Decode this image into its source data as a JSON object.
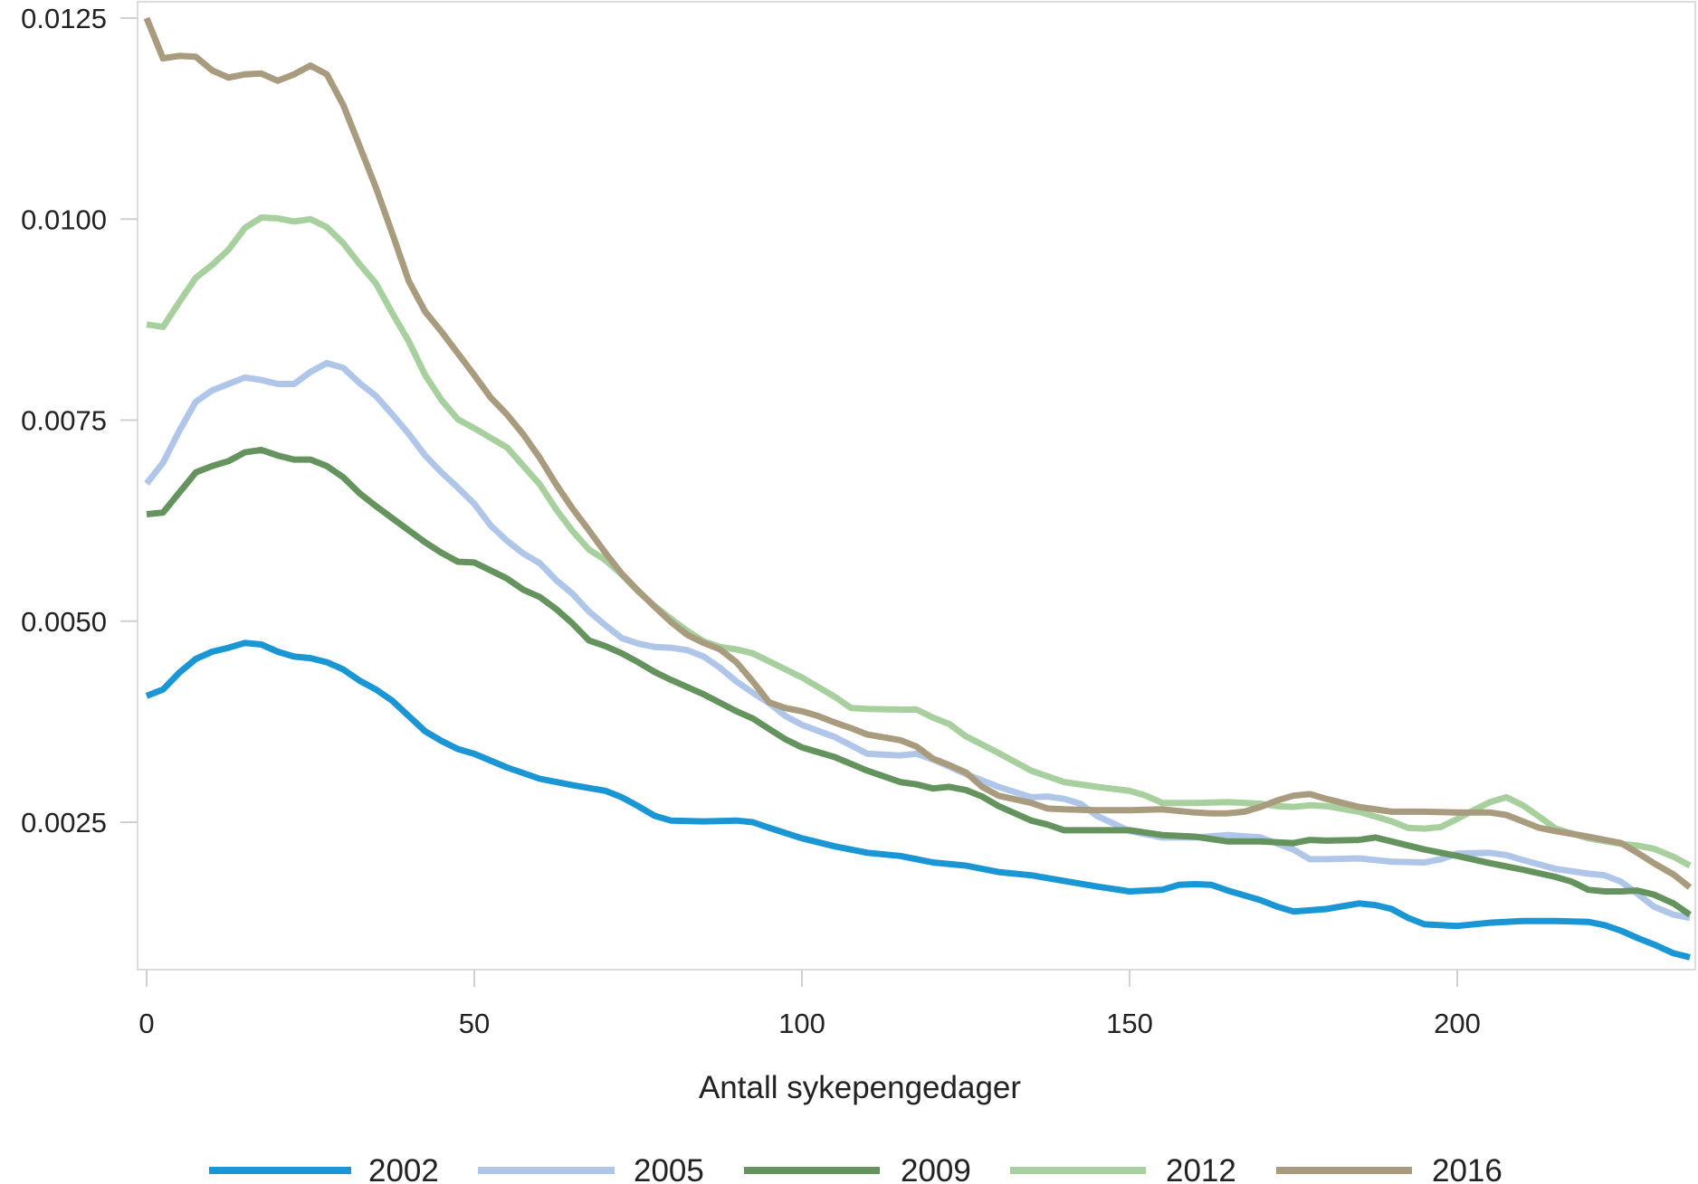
{
  "chart_data": {
    "type": "line",
    "title": "",
    "xlabel": "Antall sykepengedager",
    "ylabel": "",
    "xlim": [
      -4.5,
      235.5
    ],
    "ylim": [
      0.0006,
      0.01255
    ],
    "x_ticks": [
      0,
      50,
      100,
      150,
      200
    ],
    "x_tick_labels": [
      "0",
      "50",
      "100",
      "150",
      "200"
    ],
    "y_ticks": [
      0.0025,
      0.005,
      0.0075,
      0.01,
      0.0125
    ],
    "y_tick_labels": [
      "0.0025",
      "0.0050",
      "0.0075",
      "0.0100",
      "0.0125"
    ],
    "grid": false,
    "legend_position": "bottom",
    "series": [
      {
        "name": "2002",
        "color": "#1a96d4",
        "x": [
          0,
          2.5,
          5,
          7.5,
          10,
          12.5,
          15,
          17.5,
          20,
          22.5,
          25,
          27.5,
          30,
          32.5,
          35,
          37.5,
          40,
          42.5,
          45,
          47.5,
          50,
          55,
          60,
          65,
          70,
          72.5,
          75,
          77.5,
          80,
          85,
          90,
          92.5,
          95,
          100,
          105,
          110,
          115,
          120,
          125,
          130,
          135,
          140,
          145,
          150,
          155,
          157.5,
          160,
          162.5,
          165,
          170,
          172.5,
          175,
          180,
          185,
          187.5,
          190,
          192.5,
          195,
          200,
          205,
          210,
          215,
          220,
          222.5,
          225,
          227.5,
          230,
          233,
          235.5
        ],
        "values": [
          0.00407,
          0.00415,
          0.00436,
          0.00453,
          0.00462,
          0.00467,
          0.00473,
          0.00471,
          0.00462,
          0.00456,
          0.00454,
          0.00449,
          0.0044,
          0.00426,
          0.00415,
          0.00401,
          0.00382,
          0.00363,
          0.00351,
          0.00341,
          0.00335,
          0.00318,
          0.00304,
          0.00296,
          0.00289,
          0.00281,
          0.0027,
          0.00258,
          0.00252,
          0.00251,
          0.00252,
          0.0025,
          0.00243,
          0.0023,
          0.0022,
          0.00212,
          0.00208,
          0.002,
          0.00196,
          0.00188,
          0.00184,
          0.00177,
          0.0017,
          0.00164,
          0.00166,
          0.00172,
          0.00173,
          0.00172,
          0.00165,
          0.00153,
          0.00145,
          0.00139,
          0.00142,
          0.00149,
          0.00147,
          0.00142,
          0.00131,
          0.00123,
          0.00121,
          0.00125,
          0.00127,
          0.00127,
          0.00126,
          0.00122,
          0.00115,
          0.00106,
          0.00098,
          0.00087,
          0.00082
        ]
      },
      {
        "name": "2005",
        "color": "#b0c6e8",
        "x": [
          0,
          2.5,
          5,
          7.5,
          10,
          12.5,
          15,
          17.5,
          20,
          22.5,
          25,
          27.5,
          30,
          32.5,
          35,
          37.5,
          40,
          42.5,
          45,
          47.5,
          50,
          52.5,
          55,
          57.5,
          60,
          62.5,
          65,
          67.5,
          70,
          72.5,
          75,
          77.5,
          80,
          82.5,
          85,
          87.5,
          90,
          92.5,
          95,
          97.5,
          100,
          105,
          110,
          115,
          117.5,
          120,
          125,
          130,
          135,
          137.5,
          140,
          142.5,
          145,
          150,
          155,
          160,
          165,
          170,
          175,
          177.5,
          180,
          185,
          190,
          195,
          197.5,
          200,
          205,
          207.5,
          210,
          215,
          220,
          222.5,
          225,
          227.5,
          230,
          233,
          235.5
        ],
        "values": [
          0.00671,
          0.00697,
          0.00737,
          0.00773,
          0.00787,
          0.00795,
          0.00803,
          0.008,
          0.00795,
          0.00795,
          0.0081,
          0.00821,
          0.00815,
          0.00796,
          0.0078,
          0.00757,
          0.00733,
          0.00706,
          0.00685,
          0.00666,
          0.00646,
          0.00619,
          0.006,
          0.00584,
          0.00572,
          0.00551,
          0.00534,
          0.00512,
          0.00495,
          0.00479,
          0.00472,
          0.00468,
          0.00467,
          0.00464,
          0.00456,
          0.00442,
          0.00425,
          0.00411,
          0.00398,
          0.00382,
          0.00371,
          0.00356,
          0.00335,
          0.00333,
          0.00335,
          0.00328,
          0.0031,
          0.00294,
          0.00281,
          0.00282,
          0.00279,
          0.00273,
          0.00258,
          0.00239,
          0.00231,
          0.00231,
          0.00234,
          0.00231,
          0.00216,
          0.00204,
          0.00204,
          0.00205,
          0.00201,
          0.002,
          0.00204,
          0.00211,
          0.00212,
          0.00209,
          0.00203,
          0.00192,
          0.00186,
          0.00184,
          0.00176,
          0.00161,
          0.00145,
          0.00135,
          0.00131
        ]
      },
      {
        "name": "2009",
        "color": "#64935e",
        "x": [
          0,
          2.5,
          5,
          7.5,
          10,
          12.5,
          15,
          17.5,
          20,
          22.5,
          25,
          27.5,
          30,
          32.5,
          35,
          37.5,
          40,
          42.5,
          45,
          47.5,
          50,
          52.5,
          55,
          57.5,
          60,
          62.5,
          65,
          67.5,
          70,
          72.5,
          75,
          77.5,
          80,
          85,
          90,
          92.5,
          95,
          97.5,
          100,
          105,
          110,
          115,
          117.5,
          120,
          122.5,
          125,
          127.5,
          130,
          135,
          137.5,
          140,
          145,
          150,
          155,
          160,
          165,
          170,
          175,
          177.5,
          180,
          185,
          187.5,
          190,
          195,
          200,
          205,
          210,
          215,
          217.5,
          220,
          222.5,
          225,
          227.5,
          230,
          233,
          235.5
        ],
        "values": [
          0.00633,
          0.00635,
          0.0066,
          0.00685,
          0.00693,
          0.00699,
          0.0071,
          0.00713,
          0.00706,
          0.00701,
          0.00701,
          0.00693,
          0.00679,
          0.00659,
          0.00643,
          0.00628,
          0.00613,
          0.00598,
          0.00585,
          0.00574,
          0.00573,
          0.00563,
          0.00553,
          0.00539,
          0.0053,
          0.00515,
          0.00497,
          0.00476,
          0.00469,
          0.0046,
          0.00449,
          0.00437,
          0.00427,
          0.00409,
          0.00388,
          0.00379,
          0.00366,
          0.00353,
          0.00343,
          0.00331,
          0.00314,
          0.003,
          0.00297,
          0.00292,
          0.00294,
          0.0029,
          0.00282,
          0.0027,
          0.00252,
          0.00247,
          0.0024,
          0.0024,
          0.0024,
          0.00234,
          0.00232,
          0.00226,
          0.00226,
          0.00224,
          0.00228,
          0.00227,
          0.00228,
          0.00231,
          0.00226,
          0.00216,
          0.00208,
          0.00199,
          0.00191,
          0.00182,
          0.00176,
          0.00166,
          0.00164,
          0.00164,
          0.00165,
          0.0016,
          0.00149,
          0.00135
        ]
      },
      {
        "name": "2012",
        "color": "#a8d09f",
        "x": [
          0,
          2.5,
          5,
          7.5,
          10,
          12.5,
          15,
          17.5,
          20,
          22.5,
          25,
          27.5,
          30,
          32.5,
          35,
          37.5,
          40,
          42.5,
          45,
          47.5,
          50,
          52.5,
          55,
          57.5,
          60,
          62.5,
          65,
          67.5,
          70,
          72.5,
          75,
          77.5,
          80,
          82.5,
          85,
          87.5,
          90,
          92.5,
          95,
          97.5,
          100,
          102.5,
          105,
          107.5,
          110,
          115,
          117.5,
          120,
          122.5,
          125,
          130,
          135,
          140,
          145,
          150,
          152.5,
          155,
          160,
          165,
          170,
          172.5,
          175,
          177.5,
          180,
          185,
          190,
          192.5,
          195,
          197.5,
          200,
          202.5,
          205,
          207.5,
          210,
          212.5,
          215,
          220,
          225,
          227.5,
          230,
          233,
          235.5
        ],
        "values": [
          0.00869,
          0.00866,
          0.00897,
          0.00927,
          0.00943,
          0.00962,
          0.00989,
          0.01002,
          0.01001,
          0.00997,
          0.01,
          0.0099,
          0.0097,
          0.00944,
          0.0092,
          0.00883,
          0.00848,
          0.00806,
          0.00775,
          0.00751,
          0.0074,
          0.00728,
          0.00716,
          0.00693,
          0.0067,
          0.00639,
          0.00612,
          0.00589,
          0.00576,
          0.00558,
          0.00537,
          0.00519,
          0.00503,
          0.00488,
          0.00475,
          0.00468,
          0.00465,
          0.0046,
          0.0045,
          0.0044,
          0.0043,
          0.00418,
          0.00406,
          0.00392,
          0.00391,
          0.0039,
          0.0039,
          0.0038,
          0.00372,
          0.00357,
          0.00336,
          0.00314,
          0.003,
          0.00294,
          0.00289,
          0.00283,
          0.00274,
          0.00274,
          0.00275,
          0.00273,
          0.0027,
          0.00269,
          0.00271,
          0.0027,
          0.00263,
          0.00251,
          0.00243,
          0.00242,
          0.00244,
          0.00254,
          0.00265,
          0.00275,
          0.00281,
          0.00271,
          0.00257,
          0.00242,
          0.0023,
          0.00223,
          0.00221,
          0.00217,
          0.00207,
          0.00196
        ]
      },
      {
        "name": "2016",
        "color": "#a89b7e",
        "x": [
          0,
          2.5,
          5,
          7.5,
          10,
          12.5,
          15,
          17.5,
          20,
          22.5,
          25,
          27.5,
          30,
          32.5,
          35,
          37.5,
          40,
          42.5,
          45,
          47.5,
          50,
          52.5,
          55,
          57.5,
          60,
          62.5,
          65,
          67.5,
          70,
          72.5,
          75,
          77.5,
          80,
          82.5,
          85,
          87.5,
          90,
          92.5,
          95,
          97.5,
          100,
          102.5,
          105,
          107.5,
          110,
          115,
          117.5,
          120,
          122.5,
          125,
          127.5,
          130,
          135,
          137.5,
          140,
          145,
          150,
          155,
          160,
          162.5,
          165,
          167.5,
          170,
          172.5,
          175,
          177.5,
          180,
          182.5,
          185,
          190,
          195,
          200,
          205,
          207.5,
          210,
          212.5,
          215,
          220,
          222.5,
          225,
          227.5,
          230,
          233,
          235.5
        ],
        "values": [
          0.0125,
          0.012,
          0.01203,
          0.01202,
          0.01185,
          0.01176,
          0.0118,
          0.01181,
          0.01172,
          0.0118,
          0.01191,
          0.0118,
          0.01142,
          0.01091,
          0.01039,
          0.00982,
          0.00923,
          0.00885,
          0.0086,
          0.00833,
          0.00806,
          0.00778,
          0.00757,
          0.00732,
          0.00703,
          0.0067,
          0.0064,
          0.00613,
          0.00585,
          0.00559,
          0.00538,
          0.00518,
          0.00499,
          0.00483,
          0.00473,
          0.00465,
          0.00449,
          0.00425,
          0.00399,
          0.00392,
          0.00388,
          0.00382,
          0.00374,
          0.00367,
          0.00359,
          0.00352,
          0.00344,
          0.00329,
          0.00321,
          0.00312,
          0.00294,
          0.00283,
          0.00274,
          0.00267,
          0.00266,
          0.00265,
          0.00265,
          0.00266,
          0.00262,
          0.00261,
          0.00261,
          0.00263,
          0.00269,
          0.00277,
          0.00283,
          0.00285,
          0.00279,
          0.00274,
          0.00269,
          0.00263,
          0.00263,
          0.00262,
          0.00262,
          0.00259,
          0.00251,
          0.00243,
          0.00239,
          0.00232,
          0.00228,
          0.00224,
          0.00212,
          0.00199,
          0.00185,
          0.00169
        ]
      }
    ]
  }
}
